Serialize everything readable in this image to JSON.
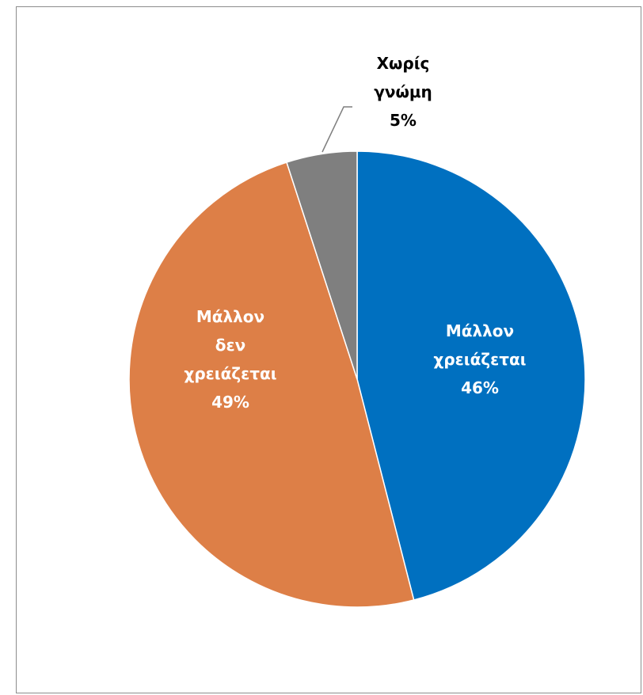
{
  "chart_data": {
    "type": "pie",
    "start_angle_deg": 0,
    "direction": "clockwise",
    "slices": [
      {
        "label_lines": [
          "Μάλλον",
          "χρειάζεται"
        ],
        "value_label": "46%",
        "value": 46,
        "color": "#0070c0",
        "label_color": "#ffffff",
        "label_position": "inside"
      },
      {
        "label_lines": [
          "Μάλλον",
          "δεν",
          "χρειάζεται"
        ],
        "value_label": "49%",
        "value": 49,
        "color": "#dd7f47",
        "label_color": "#ffffff",
        "label_position": "inside"
      },
      {
        "label_lines": [
          "Χωρίς",
          "γνώμη"
        ],
        "value_label": "5%",
        "value": 5,
        "color": "#7f7f7f",
        "label_color": "#000000",
        "label_position": "outside-leader"
      }
    ],
    "legend": "none",
    "title": ""
  }
}
